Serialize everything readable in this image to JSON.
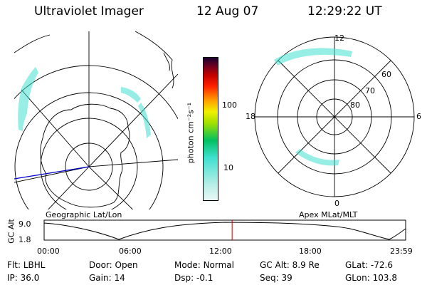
{
  "header": {
    "title": "Ultraviolet Imager",
    "date": "12 Aug 07",
    "time": "12:29:22 UT"
  },
  "geo_panel": {
    "label": "Geographic Lat/Lon"
  },
  "mlt_panel": {
    "label": "Apex MLat/MLT",
    "mlt_labels": {
      "top": "12",
      "left": "18",
      "right": "6",
      "bottom": "0"
    },
    "lat_labels": [
      "60",
      "70",
      "80"
    ]
  },
  "colorbar": {
    "unit_label": "photon cm⁻²s⁻¹",
    "scale": "log",
    "ticks": [
      "100",
      "10"
    ],
    "colors": [
      "#dff5f3",
      "#3fe0d0",
      "#00c060",
      "#a0e000",
      "#f0f000",
      "#ffa000",
      "#ff2000",
      "#c00000",
      "#700020",
      "#180030"
    ]
  },
  "timeline": {
    "ylabel": "GC Alt",
    "y_ticks": [
      "9.0",
      "1.8"
    ],
    "x_ticks": [
      "00:00",
      "06:00",
      "12:00",
      "18:00",
      "23:59"
    ],
    "current_time_fraction": 0.52
  },
  "info": {
    "row1": [
      {
        "label": "Flt:",
        "value": "LBHL"
      },
      {
        "label": "Door:",
        "value": "Open"
      },
      {
        "label": "Mode:",
        "value": "Normal"
      },
      {
        "label": "GC Alt:",
        "value": "8.9 Re"
      },
      {
        "label": "GLat:",
        "value": "-72.6"
      }
    ],
    "row2": [
      {
        "label": "IP:",
        "value": "36.0"
      },
      {
        "label": "Gain:",
        "value": "14"
      },
      {
        "label": "Dsp:",
        "value": "-0.1"
      },
      {
        "label": "Seq:",
        "value": "39"
      },
      {
        "label": "GLon:",
        "value": "103.8"
      }
    ]
  },
  "colors": {
    "aurora": "#3fe0d0",
    "current_marker": "#cc0000",
    "meridian": "#0000cc"
  }
}
